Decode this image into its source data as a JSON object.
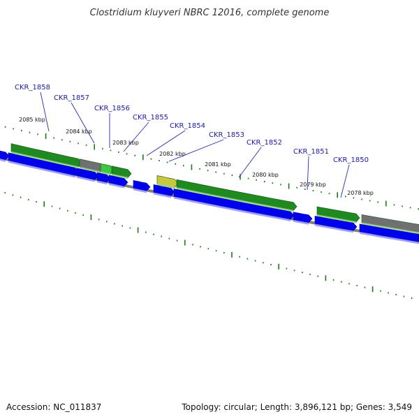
{
  "title": "Clostridium kluyveri NBRC 12016, complete genome",
  "footer": {
    "accession": "Accession: NC_011837",
    "summary": "Topology: circular; Length: 3,896,121 bp; Genes: 3,549"
  },
  "colors": {
    "cds_reverse": "#0000ee",
    "cds_forward": "#1f8a1f",
    "cds_forward_light": "#3cc83c",
    "gene_gray": "#707070",
    "rna_yellow": "#c8c83c",
    "backbone": "#808080",
    "ticks": "#1a7a1a",
    "labels": "#1a1aa6"
  },
  "tick_labels": [
    {
      "text": "2085 kbp",
      "kbp": 2085
    },
    {
      "text": "2084 kbp",
      "kbp": 2084
    },
    {
      "text": "2083 kbp",
      "kbp": 2083
    },
    {
      "text": "2082 kbp",
      "kbp": 2082
    },
    {
      "text": "2081 kbp",
      "kbp": 2081
    },
    {
      "text": "2080 kbp",
      "kbp": 2080
    },
    {
      "text": "2079 kbp",
      "kbp": 2079
    },
    {
      "text": "2078 kbp",
      "kbp": 2078
    }
  ],
  "gene_labels": [
    {
      "text": "CKR_1858"
    },
    {
      "text": "CKR_1857"
    },
    {
      "text": "CKR_1856"
    },
    {
      "text": "CKR_1855"
    },
    {
      "text": "CKR_1854"
    },
    {
      "text": "CKR_1853"
    },
    {
      "text": "CKR_1852"
    },
    {
      "text": "CKR_1851"
    },
    {
      "text": "CKR_1850"
    }
  ]
}
